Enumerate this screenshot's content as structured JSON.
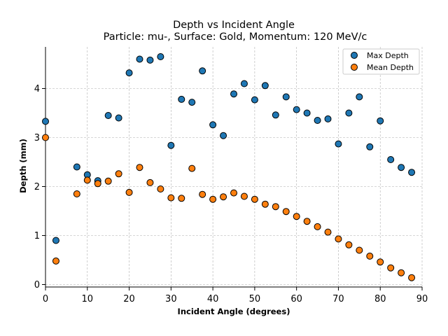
{
  "chart_data": {
    "type": "scatter",
    "title": "Depth vs Incident Angle",
    "subtitle": "Particle: mu-, Surface: Gold, Momentum: 120 MeV/c",
    "xlabel": "Incident Angle (degrees)",
    "ylabel": "Depth (mm)",
    "xlim": [
      0,
      90
    ],
    "ylim": [
      -0.05,
      4.85
    ],
    "xticks": [
      0,
      10,
      20,
      30,
      40,
      50,
      60,
      70,
      80,
      90
    ],
    "yticks": [
      0,
      1,
      2,
      3,
      4
    ],
    "grid": true,
    "legend_position": "top-right",
    "series": [
      {
        "name": "Max Depth",
        "color": "#1f77b4",
        "points": [
          [
            0,
            3.33
          ],
          [
            2.5,
            0.9
          ],
          [
            7.5,
            2.4
          ],
          [
            10,
            2.24
          ],
          [
            12.5,
            2.12
          ],
          [
            15,
            3.45
          ],
          [
            17.5,
            3.4
          ],
          [
            20,
            4.32
          ],
          [
            22.5,
            4.6
          ],
          [
            25,
            4.58
          ],
          [
            27.5,
            4.65
          ],
          [
            30,
            2.84
          ],
          [
            32.5,
            3.78
          ],
          [
            35,
            3.72
          ],
          [
            37.5,
            4.36
          ],
          [
            40,
            3.26
          ],
          [
            42.5,
            3.04
          ],
          [
            45,
            3.89
          ],
          [
            47.5,
            4.1
          ],
          [
            50,
            3.77
          ],
          [
            52.5,
            4.06
          ],
          [
            55,
            3.46
          ],
          [
            57.5,
            3.83
          ],
          [
            60,
            3.57
          ],
          [
            62.5,
            3.5
          ],
          [
            65,
            3.35
          ],
          [
            67.5,
            3.38
          ],
          [
            70,
            2.87
          ],
          [
            72.5,
            3.5
          ],
          [
            75,
            3.83
          ],
          [
            77.5,
            2.81
          ],
          [
            80,
            3.34
          ],
          [
            82.5,
            2.55
          ],
          [
            85,
            2.39
          ],
          [
            87.5,
            2.29
          ]
        ]
      },
      {
        "name": "Mean Depth",
        "color": "#ff7f0e",
        "points": [
          [
            0,
            3.0
          ],
          [
            2.5,
            0.48
          ],
          [
            7.5,
            1.85
          ],
          [
            10,
            2.13
          ],
          [
            12.5,
            2.06
          ],
          [
            15,
            2.11
          ],
          [
            17.5,
            2.26
          ],
          [
            20,
            1.88
          ],
          [
            22.5,
            2.39
          ],
          [
            25,
            2.08
          ],
          [
            27.5,
            1.95
          ],
          [
            30,
            1.77
          ],
          [
            32.5,
            1.76
          ],
          [
            35,
            2.37
          ],
          [
            37.5,
            1.84
          ],
          [
            40,
            1.74
          ],
          [
            42.5,
            1.79
          ],
          [
            45,
            1.87
          ],
          [
            47.5,
            1.8
          ],
          [
            50,
            1.74
          ],
          [
            52.5,
            1.64
          ],
          [
            55,
            1.59
          ],
          [
            57.5,
            1.49
          ],
          [
            60,
            1.39
          ],
          [
            62.5,
            1.29
          ],
          [
            65,
            1.18
          ],
          [
            67.5,
            1.07
          ],
          [
            70,
            0.93
          ],
          [
            72.5,
            0.81
          ],
          [
            75,
            0.7
          ],
          [
            77.5,
            0.58
          ],
          [
            80,
            0.46
          ],
          [
            82.5,
            0.34
          ],
          [
            85,
            0.24
          ],
          [
            87.5,
            0.14
          ]
        ]
      }
    ]
  }
}
